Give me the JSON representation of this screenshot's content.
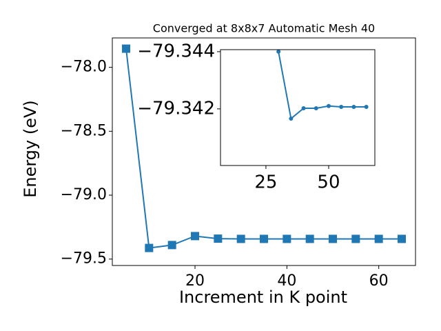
{
  "chart_data": [
    {
      "type": "line",
      "title": "Converged at 8x8x7 Automatic Mesh 40",
      "x_label": "Increment in K point",
      "y_label": "Energy (eV)",
      "x": [
        5,
        10,
        15,
        20,
        25,
        30,
        35,
        40,
        45,
        50,
        55,
        60,
        65
      ],
      "series": [
        {
          "color": "#1f77b4",
          "marker": "square",
          "values": [
            -77.854,
            -79.413,
            -79.39,
            -79.32,
            -79.34,
            -79.342,
            -79.342,
            -79.342,
            -79.342,
            -79.342,
            -79.342,
            -79.342,
            -79.342
          ]
        }
      ],
      "xlim": [
        2,
        68
      ],
      "ylim": [
        -79.55,
        -77.77
      ],
      "xticks": [
        20,
        40,
        60
      ],
      "yticks": [
        {
          "value": -78.0,
          "label": "−78.0"
        },
        {
          "value": -78.5,
          "label": "−78.5"
        },
        {
          "value": -79.0,
          "label": "−79.0"
        },
        {
          "value": -79.5,
          "label": "−79.5"
        }
      ]
    },
    {
      "type": "line",
      "x": [
        30,
        35,
        40,
        45,
        50,
        55,
        60,
        65
      ],
      "series": [
        {
          "color": "#1f77b4",
          "marker": "circle",
          "values": [
            -79.344,
            -79.34166,
            -79.34202,
            -79.34202,
            -79.3421,
            -79.34207,
            -79.34207,
            -79.34207
          ]
        }
      ],
      "xlim": [
        6.9,
        68.4
      ],
      "ylim": [
        -79.34002,
        -79.34407
      ],
      "xticks": [
        25,
        50
      ],
      "yticks": [
        {
          "value": -79.344,
          "label": "−79.344"
        },
        {
          "value": -79.342,
          "label": "−79.342"
        }
      ]
    }
  ]
}
